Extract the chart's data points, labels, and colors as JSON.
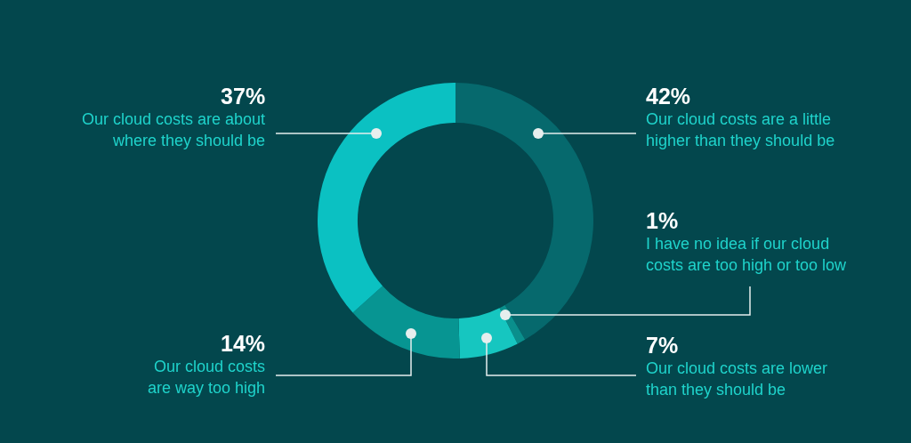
{
  "chart_data": {
    "type": "donut",
    "categories": [
      "Our cloud costs are a little\nhigher than they should be",
      "I have no idea if our cloud\ncosts are too high or too low",
      "Our cloud costs are lower\nthan they should be",
      "Our cloud costs\nare way too high",
      "Our cloud costs are about\nwhere they should be"
    ],
    "values": [
      42,
      1,
      7,
      14,
      37
    ],
    "value_labels": [
      "42%",
      "1%",
      "7%",
      "14%",
      "37%"
    ],
    "colors": [
      "#06696d",
      "#0a8f8c",
      "#16c6c0",
      "#079592",
      "#0bc1c2"
    ],
    "legend": false
  }
}
